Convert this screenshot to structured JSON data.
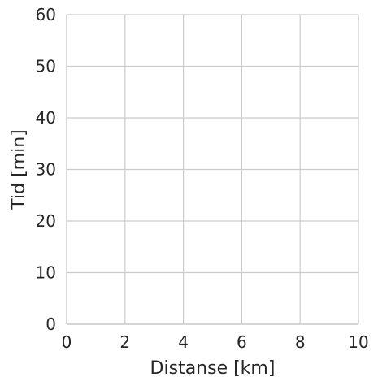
{
  "chart_data": {
    "type": "line",
    "title": "",
    "xlabel": "Distanse [km]",
    "ylabel": "Tid [min]",
    "xlim": [
      0,
      10
    ],
    "ylim": [
      0,
      60
    ],
    "xticks": [
      0,
      2,
      4,
      6,
      8,
      10
    ],
    "yticks": [
      0,
      10,
      20,
      30,
      40,
      50,
      60
    ],
    "xtick_labels": [
      "0",
      "2",
      "4",
      "6",
      "8",
      "10"
    ],
    "ytick_labels": [
      "0",
      "10",
      "20",
      "30",
      "40",
      "50",
      "60"
    ],
    "grid": true,
    "series": []
  },
  "colors": {
    "grid": "#cccccc",
    "spine": "#cccccc",
    "text": "#262626",
    "background": "#ffffff"
  }
}
